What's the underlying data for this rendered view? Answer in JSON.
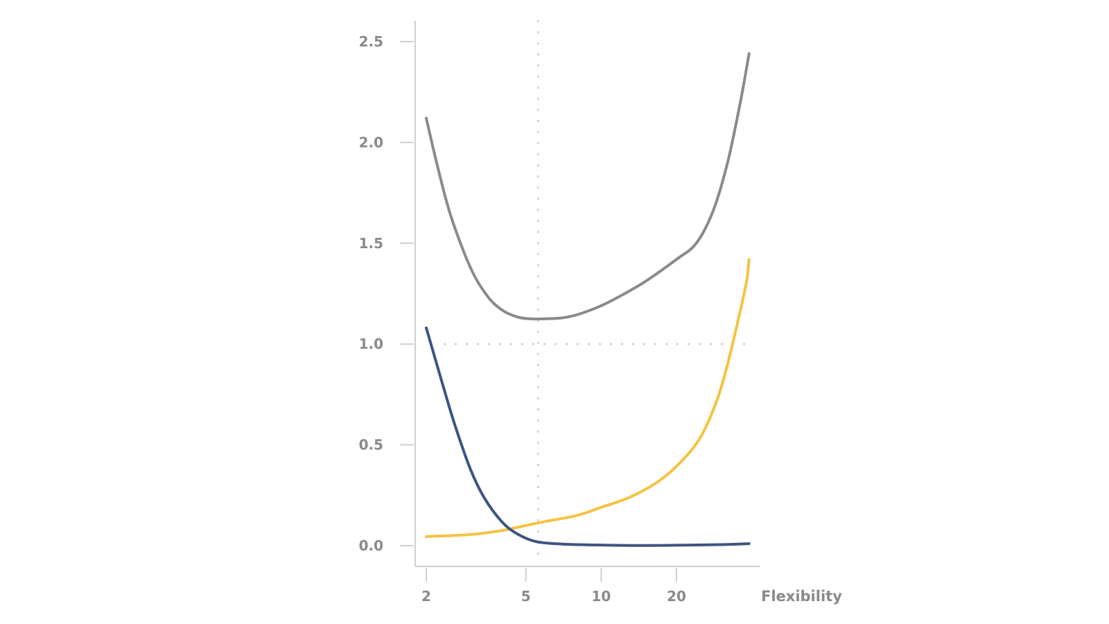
{
  "chart_data": {
    "type": "line",
    "title": "",
    "xlabel": "Flexibility",
    "ylabel": "",
    "x_scale": "log",
    "xlim": [
      2,
      40
    ],
    "ylim": [
      0,
      2.5
    ],
    "x_ticks": [
      2,
      5,
      10,
      20
    ],
    "x_tick_labels": [
      "2",
      "5",
      "10",
      "20"
    ],
    "y_ticks": [
      0,
      0.5,
      1.0,
      1.5,
      2.0,
      2.5
    ],
    "y_tick_labels": [
      "0.0",
      "0.5",
      "1.0",
      "1.5",
      "2.0",
      "2.5"
    ],
    "grid": false,
    "reference_lines": {
      "x": 5.6,
      "y": 1.0
    },
    "series": [
      {
        "color": "#8a8a8c",
        "points": [
          [
            2,
            2.12
          ],
          [
            2.2,
            1.9
          ],
          [
            2.5,
            1.64
          ],
          [
            3,
            1.38
          ],
          [
            3.5,
            1.24
          ],
          [
            4,
            1.17
          ],
          [
            4.6,
            1.135
          ],
          [
            5.2,
            1.125
          ],
          [
            6,
            1.125
          ],
          [
            7,
            1.13
          ],
          [
            8,
            1.145
          ],
          [
            10,
            1.19
          ],
          [
            12,
            1.24
          ],
          [
            15,
            1.31
          ],
          [
            20,
            1.42
          ],
          [
            24,
            1.5
          ],
          [
            28,
            1.66
          ],
          [
            32,
            1.9
          ],
          [
            36,
            2.2
          ],
          [
            39,
            2.44
          ]
        ]
      },
      {
        "color": "#f5c242",
        "points": [
          [
            2,
            0.045
          ],
          [
            3,
            0.055
          ],
          [
            4,
            0.075
          ],
          [
            5,
            0.1
          ],
          [
            6,
            0.12
          ],
          [
            8,
            0.15
          ],
          [
            10,
            0.19
          ],
          [
            13,
            0.24
          ],
          [
            17,
            0.32
          ],
          [
            21,
            0.42
          ],
          [
            25,
            0.54
          ],
          [
            29,
            0.72
          ],
          [
            32,
            0.9
          ],
          [
            35,
            1.1
          ],
          [
            38,
            1.3
          ],
          [
            39,
            1.42
          ]
        ]
      },
      {
        "color": "#3e5482",
        "points": [
          [
            2,
            1.08
          ],
          [
            2.3,
            0.82
          ],
          [
            2.6,
            0.6
          ],
          [
            3,
            0.38
          ],
          [
            3.4,
            0.24
          ],
          [
            4,
            0.12
          ],
          [
            4.6,
            0.06
          ],
          [
            5.5,
            0.02
          ],
          [
            7,
            0.008
          ],
          [
            10,
            0.003
          ],
          [
            15,
            0.001
          ],
          [
            20,
            0.002
          ],
          [
            30,
            0.005
          ],
          [
            39,
            0.01
          ]
        ]
      }
    ]
  }
}
